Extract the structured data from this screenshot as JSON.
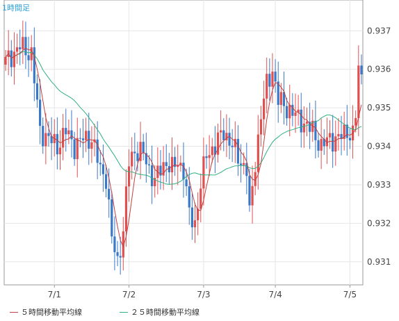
{
  "chart_data": {
    "type": "candlestick",
    "title": "1時間足",
    "ylim": [
      0.9304,
      0.9378
    ],
    "y_ticks": [
      "0.937",
      "0.936",
      "0.935",
      "0.934",
      "0.933",
      "0.932",
      "0.931"
    ],
    "y_tick_values": [
      0.937,
      0.936,
      0.935,
      0.934,
      0.933,
      0.932,
      0.931
    ],
    "x_ticks": [
      "7/1",
      "7/2",
      "7/3",
      "7/4",
      "7/5"
    ],
    "x_tick_index": [
      17,
      43,
      69,
      94,
      120
    ],
    "bar_count": 125,
    "colors": {
      "up": "#e05050",
      "down": "#3a78c8",
      "ma5": "#c04040",
      "ma25": "#30b080",
      "grid": "#e6e6e6",
      "axis": "#999999",
      "title": "#2aa0d8"
    },
    "series": [
      {
        "name": "５時間移動平均線",
        "color": "#c04040"
      },
      {
        "name": "２５時間移動平均線",
        "color": "#30b080"
      }
    ],
    "close_anchors": [
      [
        0,
        0.9362
      ],
      [
        5,
        0.9366
      ],
      [
        9,
        0.9364
      ],
      [
        12,
        0.9344
      ],
      [
        15,
        0.9342
      ],
      [
        18,
        0.934
      ],
      [
        21,
        0.9344
      ],
      [
        24,
        0.934
      ],
      [
        27,
        0.9342
      ],
      [
        30,
        0.9342
      ],
      [
        33,
        0.9334
      ],
      [
        35,
        0.9332
      ],
      [
        37,
        0.9316
      ],
      [
        39,
        0.931
      ],
      [
        41,
        0.9318
      ],
      [
        43,
        0.9336
      ],
      [
        45,
        0.9339
      ],
      [
        48,
        0.9338
      ],
      [
        50,
        0.9334
      ],
      [
        52,
        0.9331
      ],
      [
        54,
        0.9334
      ],
      [
        56,
        0.9336
      ],
      [
        58,
        0.9334
      ],
      [
        60,
        0.9336
      ],
      [
        62,
        0.9334
      ],
      [
        64,
        0.9322
      ],
      [
        66,
        0.932
      ],
      [
        68,
        0.933
      ],
      [
        70,
        0.9338
      ],
      [
        73,
        0.934
      ],
      [
        76,
        0.9344
      ],
      [
        79,
        0.934
      ],
      [
        82,
        0.9336
      ],
      [
        84,
        0.9334
      ],
      [
        85,
        0.9322
      ],
      [
        87,
        0.9336
      ],
      [
        89,
        0.9348
      ],
      [
        91,
        0.9356
      ],
      [
        93,
        0.936
      ],
      [
        95,
        0.9352
      ],
      [
        98,
        0.935
      ],
      [
        101,
        0.9348
      ],
      [
        104,
        0.9346
      ],
      [
        107,
        0.9344
      ],
      [
        110,
        0.934
      ],
      [
        113,
        0.9342
      ],
      [
        116,
        0.9342
      ],
      [
        119,
        0.9344
      ],
      [
        121,
        0.9343
      ],
      [
        122,
        0.9348
      ],
      [
        123,
        0.936
      ],
      [
        124,
        0.9358
      ]
    ],
    "legend_position": "bottom-left"
  }
}
